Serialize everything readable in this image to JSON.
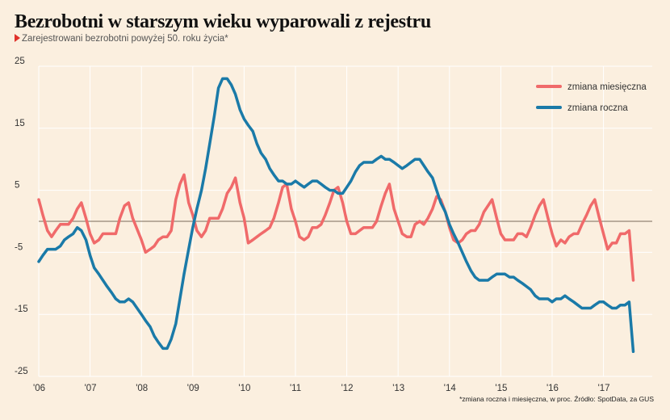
{
  "header": {
    "title": "Bezrobotni w starszym wieku wyparowali z rejestru",
    "subtitle": "Zarejestrowani bezrobotni powyżej 50. roku życia*"
  },
  "footer": {
    "source": "*zmiana roczna i miesięczna, w proc. Źródło: SpotData, za GUS"
  },
  "colors": {
    "background": "#fbefdf",
    "monthly": "#f06a6a",
    "annual": "#1a7aa8",
    "zero_line": "#7a6a5a"
  },
  "chart_data": {
    "type": "line",
    "ylim": [
      -25,
      25
    ],
    "yticks": [
      25,
      15,
      5,
      -5,
      -15,
      -25
    ],
    "xlim": [
      2006.0,
      2017.95
    ],
    "xticks": [
      {
        "value": 2006,
        "label": "'06"
      },
      {
        "value": 2007,
        "label": "'07"
      },
      {
        "value": 2008,
        "label": "'08"
      },
      {
        "value": 2009,
        "label": "'09"
      },
      {
        "value": 2010,
        "label": "'10"
      },
      {
        "value": 2011,
        "label": "'11"
      },
      {
        "value": 2012,
        "label": "'12"
      },
      {
        "value": 2013,
        "label": "'13"
      },
      {
        "value": 2014,
        "label": "'14"
      },
      {
        "value": 2015,
        "label": "'15"
      },
      {
        "value": 2016,
        "label": "'16"
      },
      {
        "value": 2017,
        "label": "'17"
      }
    ],
    "legend_position": "top-right",
    "series": [
      {
        "name": "zmiana miesięczna",
        "color": "#f06a6a",
        "points": [
          [
            2006.0,
            3.5
          ],
          [
            2006.08,
            1.0
          ],
          [
            2006.17,
            -1.5
          ],
          [
            2006.25,
            -2.5
          ],
          [
            2006.33,
            -1.5
          ],
          [
            2006.42,
            -0.5
          ],
          [
            2006.5,
            -0.5
          ],
          [
            2006.58,
            -0.5
          ],
          [
            2006.67,
            0.5
          ],
          [
            2006.75,
            2.0
          ],
          [
            2006.83,
            3.0
          ],
          [
            2006.92,
            0.5
          ],
          [
            2007.0,
            -2.0
          ],
          [
            2007.08,
            -3.5
          ],
          [
            2007.17,
            -3.0
          ],
          [
            2007.25,
            -2.0
          ],
          [
            2007.33,
            -2.0
          ],
          [
            2007.42,
            -2.0
          ],
          [
            2007.5,
            -2.0
          ],
          [
            2007.58,
            0.5
          ],
          [
            2007.67,
            2.5
          ],
          [
            2007.75,
            3.0
          ],
          [
            2007.83,
            0.5
          ],
          [
            2008.0,
            -3.0
          ],
          [
            2008.08,
            -5.0
          ],
          [
            2008.17,
            -4.5
          ],
          [
            2008.25,
            -4.0
          ],
          [
            2008.33,
            -3.0
          ],
          [
            2008.42,
            -2.5
          ],
          [
            2008.5,
            -2.5
          ],
          [
            2008.58,
            -1.5
          ],
          [
            2008.67,
            3.5
          ],
          [
            2008.75,
            6.0
          ],
          [
            2008.83,
            7.5
          ],
          [
            2008.92,
            3.0
          ],
          [
            2009.0,
            1.0
          ],
          [
            2009.08,
            -1.5
          ],
          [
            2009.17,
            -2.5
          ],
          [
            2009.25,
            -1.5
          ],
          [
            2009.33,
            0.5
          ],
          [
            2009.42,
            0.5
          ],
          [
            2009.5,
            0.5
          ],
          [
            2009.58,
            2.0
          ],
          [
            2009.67,
            4.5
          ],
          [
            2009.75,
            5.5
          ],
          [
            2009.83,
            7.0
          ],
          [
            2009.92,
            3.0
          ],
          [
            2010.0,
            0.5
          ],
          [
            2010.08,
            -3.5
          ],
          [
            2010.17,
            -3.0
          ],
          [
            2010.25,
            -2.5
          ],
          [
            2010.33,
            -2.0
          ],
          [
            2010.42,
            -1.5
          ],
          [
            2010.5,
            -1.0
          ],
          [
            2010.58,
            0.5
          ],
          [
            2010.67,
            3.0
          ],
          [
            2010.75,
            5.5
          ],
          [
            2010.83,
            6.0
          ],
          [
            2010.92,
            2.0
          ],
          [
            2011.0,
            0.0
          ],
          [
            2011.08,
            -2.5
          ],
          [
            2011.17,
            -3.0
          ],
          [
            2011.25,
            -2.5
          ],
          [
            2011.33,
            -1.0
          ],
          [
            2011.42,
            -1.0
          ],
          [
            2011.5,
            -0.5
          ],
          [
            2011.58,
            1.0
          ],
          [
            2011.67,
            3.0
          ],
          [
            2011.75,
            5.0
          ],
          [
            2011.83,
            5.5
          ],
          [
            2011.92,
            3.0
          ],
          [
            2012.0,
            0.0
          ],
          [
            2012.08,
            -2.0
          ],
          [
            2012.17,
            -2.0
          ],
          [
            2012.25,
            -1.5
          ],
          [
            2012.33,
            -1.0
          ],
          [
            2012.42,
            -1.0
          ],
          [
            2012.5,
            -1.0
          ],
          [
            2012.58,
            0.0
          ],
          [
            2012.67,
            2.5
          ],
          [
            2012.75,
            4.5
          ],
          [
            2012.83,
            6.0
          ],
          [
            2012.92,
            2.0
          ],
          [
            2013.0,
            0.0
          ],
          [
            2013.08,
            -2.0
          ],
          [
            2013.17,
            -2.5
          ],
          [
            2013.25,
            -2.5
          ],
          [
            2013.33,
            -0.5
          ],
          [
            2013.42,
            0.0
          ],
          [
            2013.5,
            -0.5
          ],
          [
            2013.58,
            0.5
          ],
          [
            2013.67,
            2.0
          ],
          [
            2013.75,
            4.0
          ],
          [
            2013.83,
            3.5
          ],
          [
            2013.92,
            1.5
          ],
          [
            2014.0,
            -1.0
          ],
          [
            2014.08,
            -3.0
          ],
          [
            2014.17,
            -3.5
          ],
          [
            2014.25,
            -3.0
          ],
          [
            2014.33,
            -2.0
          ],
          [
            2014.42,
            -1.5
          ],
          [
            2014.5,
            -1.5
          ],
          [
            2014.58,
            -0.5
          ],
          [
            2014.67,
            1.5
          ],
          [
            2014.75,
            2.5
          ],
          [
            2014.83,
            3.5
          ],
          [
            2014.92,
            0.5
          ],
          [
            2015.0,
            -2.0
          ],
          [
            2015.08,
            -3.0
          ],
          [
            2015.17,
            -3.0
          ],
          [
            2015.25,
            -3.0
          ],
          [
            2015.33,
            -2.0
          ],
          [
            2015.42,
            -2.0
          ],
          [
            2015.5,
            -2.5
          ],
          [
            2015.58,
            -1.0
          ],
          [
            2015.67,
            1.0
          ],
          [
            2015.75,
            2.5
          ],
          [
            2015.83,
            3.5
          ],
          [
            2015.92,
            0.5
          ],
          [
            2016.0,
            -2.0
          ],
          [
            2016.08,
            -4.0
          ],
          [
            2016.17,
            -3.0
          ],
          [
            2016.25,
            -3.5
          ],
          [
            2016.33,
            -2.5
          ],
          [
            2016.42,
            -2.0
          ],
          [
            2016.5,
            -2.0
          ],
          [
            2016.58,
            -0.5
          ],
          [
            2016.67,
            1.0
          ],
          [
            2016.75,
            2.5
          ],
          [
            2016.83,
            3.5
          ],
          [
            2016.92,
            0.5
          ],
          [
            2017.0,
            -2.0
          ],
          [
            2017.08,
            -4.5
          ],
          [
            2017.17,
            -3.5
          ],
          [
            2017.25,
            -3.5
          ],
          [
            2017.33,
            -2.0
          ],
          [
            2017.42,
            -2.0
          ],
          [
            2017.5,
            -1.5
          ],
          [
            2017.58,
            -9.5
          ]
        ]
      },
      {
        "name": "zmiana roczna",
        "color": "#1a7aa8",
        "points": [
          [
            2006.0,
            -6.5
          ],
          [
            2006.08,
            -5.5
          ],
          [
            2006.17,
            -4.5
          ],
          [
            2006.25,
            -4.5
          ],
          [
            2006.33,
            -4.5
          ],
          [
            2006.42,
            -4.0
          ],
          [
            2006.5,
            -3.0
          ],
          [
            2006.58,
            -2.5
          ],
          [
            2006.67,
            -2.0
          ],
          [
            2006.75,
            -1.0
          ],
          [
            2006.83,
            -1.5
          ],
          [
            2006.92,
            -3.0
          ],
          [
            2007.0,
            -5.5
          ],
          [
            2007.08,
            -7.5
          ],
          [
            2007.17,
            -8.5
          ],
          [
            2007.25,
            -9.5
          ],
          [
            2007.33,
            -10.5
          ],
          [
            2007.42,
            -11.5
          ],
          [
            2007.5,
            -12.5
          ],
          [
            2007.58,
            -13.0
          ],
          [
            2007.67,
            -13.0
          ],
          [
            2007.75,
            -12.5
          ],
          [
            2007.83,
            -13.0
          ],
          [
            2008.0,
            -15.0
          ],
          [
            2008.08,
            -16.0
          ],
          [
            2008.17,
            -17.0
          ],
          [
            2008.25,
            -18.5
          ],
          [
            2008.33,
            -19.5
          ],
          [
            2008.42,
            -20.5
          ],
          [
            2008.5,
            -20.5
          ],
          [
            2008.58,
            -19.0
          ],
          [
            2008.67,
            -16.5
          ],
          [
            2008.75,
            -12.5
          ],
          [
            2008.83,
            -8.5
          ],
          [
            2008.92,
            -4.5
          ],
          [
            2009.0,
            -1.0
          ],
          [
            2009.08,
            2.0
          ],
          [
            2009.17,
            5.0
          ],
          [
            2009.25,
            8.5
          ],
          [
            2009.33,
            12.5
          ],
          [
            2009.42,
            17.0
          ],
          [
            2009.5,
            21.5
          ],
          [
            2009.58,
            23.0
          ],
          [
            2009.67,
            23.0
          ],
          [
            2009.75,
            22.0
          ],
          [
            2009.83,
            20.5
          ],
          [
            2009.92,
            18.0
          ],
          [
            2010.0,
            16.5
          ],
          [
            2010.08,
            15.5
          ],
          [
            2010.17,
            14.5
          ],
          [
            2010.25,
            12.5
          ],
          [
            2010.33,
            11.0
          ],
          [
            2010.42,
            10.0
          ],
          [
            2010.5,
            8.5
          ],
          [
            2010.58,
            7.5
          ],
          [
            2010.67,
            6.5
          ],
          [
            2010.75,
            6.5
          ],
          [
            2010.83,
            6.0
          ],
          [
            2010.92,
            6.0
          ],
          [
            2011.0,
            6.5
          ],
          [
            2011.08,
            6.0
          ],
          [
            2011.17,
            5.5
          ],
          [
            2011.25,
            6.0
          ],
          [
            2011.33,
            6.5
          ],
          [
            2011.42,
            6.5
          ],
          [
            2011.5,
            6.0
          ],
          [
            2011.58,
            5.5
          ],
          [
            2011.67,
            5.0
          ],
          [
            2011.75,
            5.0
          ],
          [
            2011.83,
            4.5
          ],
          [
            2011.92,
            4.5
          ],
          [
            2012.0,
            5.5
          ],
          [
            2012.08,
            6.5
          ],
          [
            2012.17,
            8.0
          ],
          [
            2012.25,
            9.0
          ],
          [
            2012.33,
            9.5
          ],
          [
            2012.42,
            9.5
          ],
          [
            2012.5,
            9.5
          ],
          [
            2012.58,
            10.0
          ],
          [
            2012.67,
            10.5
          ],
          [
            2012.75,
            10.0
          ],
          [
            2012.83,
            10.0
          ],
          [
            2012.92,
            9.5
          ],
          [
            2013.0,
            9.0
          ],
          [
            2013.08,
            8.5
          ],
          [
            2013.17,
            9.0
          ],
          [
            2013.25,
            9.5
          ],
          [
            2013.33,
            10.0
          ],
          [
            2013.42,
            10.0
          ],
          [
            2013.5,
            9.0
          ],
          [
            2013.58,
            8.0
          ],
          [
            2013.67,
            7.0
          ],
          [
            2013.75,
            5.0
          ],
          [
            2013.83,
            3.0
          ],
          [
            2013.92,
            1.5
          ],
          [
            2014.0,
            -0.5
          ],
          [
            2014.08,
            -2.0
          ],
          [
            2014.17,
            -3.5
          ],
          [
            2014.25,
            -5.0
          ],
          [
            2014.33,
            -6.5
          ],
          [
            2014.42,
            -8.0
          ],
          [
            2014.5,
            -9.0
          ],
          [
            2014.58,
            -9.5
          ],
          [
            2014.67,
            -9.5
          ],
          [
            2014.75,
            -9.5
          ],
          [
            2014.83,
            -9.0
          ],
          [
            2014.92,
            -8.5
          ],
          [
            2015.0,
            -8.5
          ],
          [
            2015.08,
            -8.5
          ],
          [
            2015.17,
            -9.0
          ],
          [
            2015.25,
            -9.0
          ],
          [
            2015.33,
            -9.5
          ],
          [
            2015.42,
            -10.0
          ],
          [
            2015.5,
            -10.5
          ],
          [
            2015.58,
            -11.0
          ],
          [
            2015.67,
            -12.0
          ],
          [
            2015.75,
            -12.5
          ],
          [
            2015.83,
            -12.5
          ],
          [
            2015.92,
            -12.5
          ],
          [
            2016.0,
            -13.0
          ],
          [
            2016.08,
            -12.5
          ],
          [
            2016.17,
            -12.5
          ],
          [
            2016.25,
            -12.0
          ],
          [
            2016.33,
            -12.5
          ],
          [
            2016.42,
            -13.0
          ],
          [
            2016.5,
            -13.5
          ],
          [
            2016.58,
            -14.0
          ],
          [
            2016.67,
            -14.0
          ],
          [
            2016.75,
            -14.0
          ],
          [
            2016.83,
            -13.5
          ],
          [
            2016.92,
            -13.0
          ],
          [
            2017.0,
            -13.0
          ],
          [
            2017.08,
            -13.5
          ],
          [
            2017.17,
            -14.0
          ],
          [
            2017.25,
            -14.0
          ],
          [
            2017.33,
            -13.5
          ],
          [
            2017.42,
            -13.5
          ],
          [
            2017.5,
            -13.0
          ],
          [
            2017.58,
            -21.0
          ]
        ]
      }
    ]
  }
}
